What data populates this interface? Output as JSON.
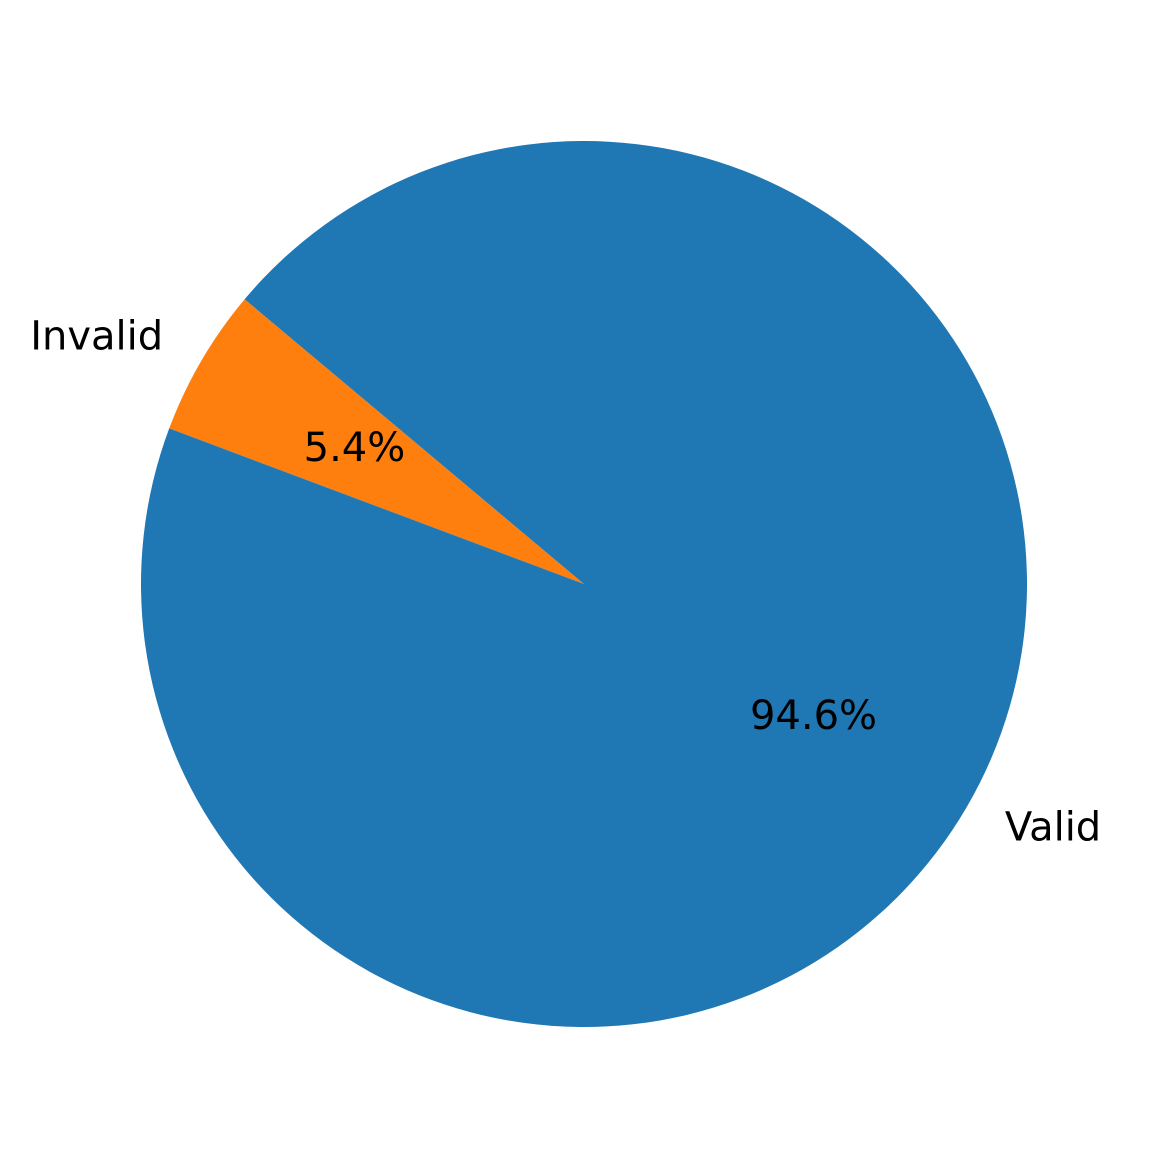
{
  "chart_data": {
    "type": "pie",
    "title": "",
    "slices": [
      {
        "label": "Valid",
        "value": 94.6,
        "pct_label": "94.6%",
        "color": "#1f77b4"
      },
      {
        "label": "Invalid",
        "value": 5.4,
        "pct_label": "5.4%",
        "color": "#ff7f0e"
      }
    ],
    "start_angle_deg": 140,
    "direction": "counterclockwise",
    "legend": "none"
  }
}
